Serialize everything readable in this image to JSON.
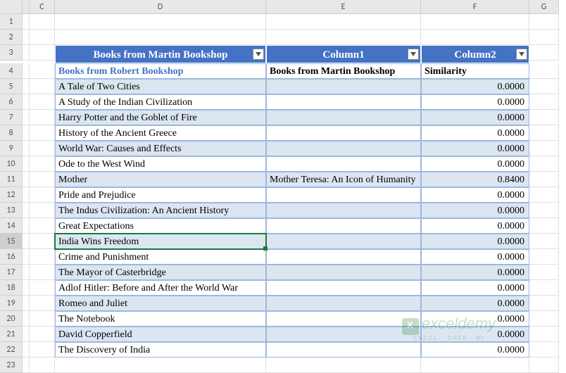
{
  "columns": [
    "",
    "C",
    "D",
    "E",
    "F",
    "G"
  ],
  "selected_row": 15,
  "table": {
    "headers": [
      "Books from Martin Bookshop",
      "Column1",
      "Column2"
    ],
    "subheaders": [
      "Books from Robert Bookshop",
      "Books from Martin Bookshop",
      "Similarity"
    ],
    "header_bg": "#4472c4",
    "header_fg": "#ffffff",
    "band_even": "#dce6f1",
    "band_odd": "#ffffff",
    "border": "#9cb8e0",
    "rows": [
      {
        "d": "A Tale of Two Cities",
        "e": "",
        "f": "0.0000"
      },
      {
        "d": "A Study of the Indian Civilization",
        "e": "",
        "f": "0.0000"
      },
      {
        "d": "Harry Potter and the Goblet of Fire",
        "e": "",
        "f": "0.0000"
      },
      {
        "d": "History of the Ancient Greece",
        "e": "",
        "f": "0.0000"
      },
      {
        "d": "World War: Causes and Effects",
        "e": "",
        "f": "0.0000"
      },
      {
        "d": "Ode to the West Wind",
        "e": "",
        "f": "0.0000"
      },
      {
        "d": "Mother",
        "e": "Mother Teresa: An Icon of Humanity",
        "f": "0.8400"
      },
      {
        "d": "Pride and Prejudice",
        "e": "",
        "f": "0.0000"
      },
      {
        "d": "The Indus Civilization: An Ancient History",
        "e": "",
        "f": "0.0000"
      },
      {
        "d": "Great Expectations",
        "e": "",
        "f": "0.0000"
      },
      {
        "d": "India Wins Freedom",
        "e": "",
        "f": "0.0000"
      },
      {
        "d": "Crime and Punishment",
        "e": "",
        "f": "0.0000"
      },
      {
        "d": "The Mayor of Casterbridge",
        "e": "",
        "f": "0.0000"
      },
      {
        "d": "Adlof Hitler: Before and After the World War",
        "e": "",
        "f": "0.0000"
      },
      {
        "d": "Romeo and Juliet",
        "e": "",
        "f": "0.0000"
      },
      {
        "d": "The Notebook",
        "e": "",
        "f": "0.0000"
      },
      {
        "d": "David Copperfield",
        "e": "",
        "f": "0.0000"
      },
      {
        "d": "The Discovery of India",
        "e": "",
        "f": "0.0000"
      }
    ]
  },
  "watermark": {
    "main": "exceldemy",
    "sub": "EXCEL · DATA · BI"
  }
}
